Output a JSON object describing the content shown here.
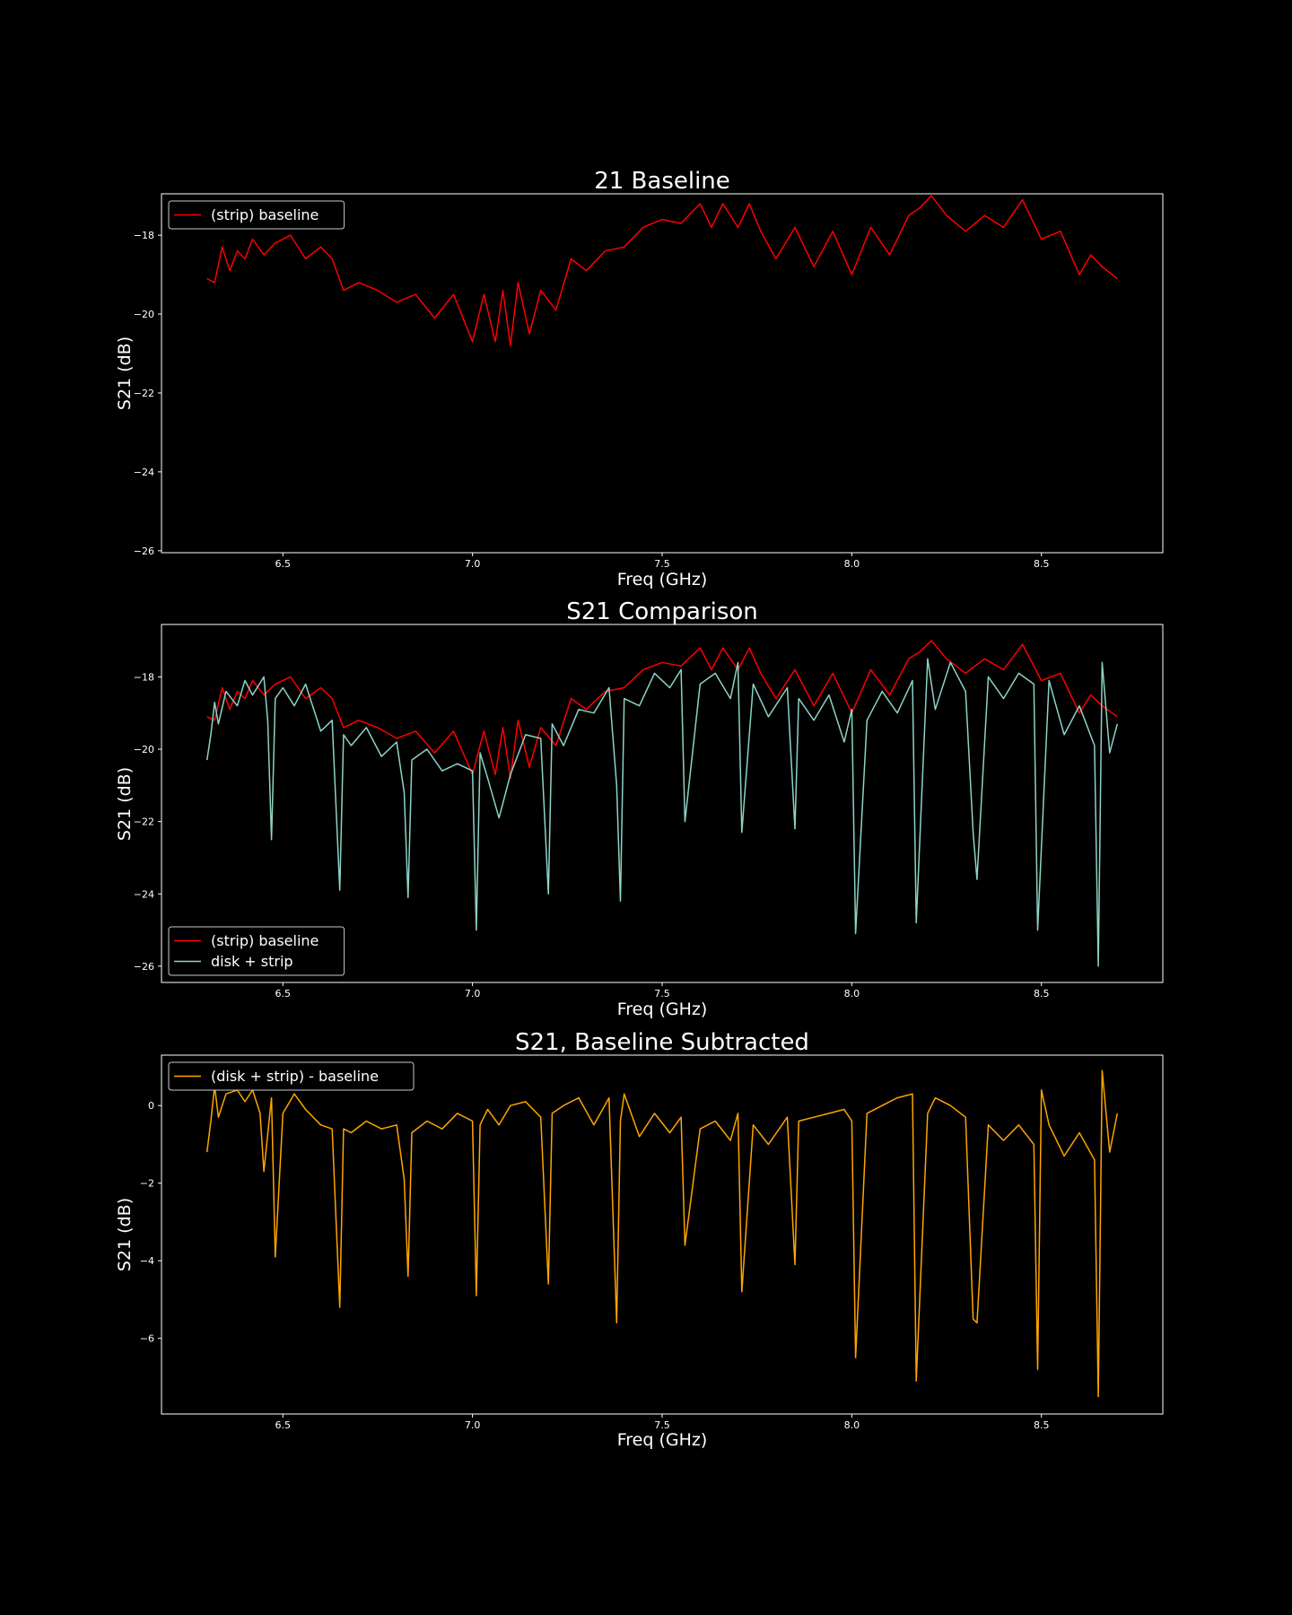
{
  "chart_data": [
    {
      "type": "line",
      "title": "21 Baseline",
      "xlabel": "Freq (GHz)",
      "ylabel": "S21 (dB)",
      "xlim": [
        6.18,
        8.82
      ],
      "ylim": [
        -26.05,
        -16.95
      ],
      "xticks": [
        6.5,
        7.0,
        7.5,
        8.0,
        8.5
      ],
      "xtick_labels": [
        "6.5",
        "7.0",
        "7.5",
        "8.0",
        "8.5"
      ],
      "yticks": [
        -18,
        -20,
        -22,
        -24,
        -26
      ],
      "ytick_labels": [
        "−18",
        "−20",
        "−22",
        "−24",
        "−26"
      ],
      "legend_position": "upper-left",
      "series": [
        {
          "name": "(strip) baseline",
          "color": "#ff0000",
          "x": [
            6.3,
            6.32,
            6.34,
            6.36,
            6.38,
            6.4,
            6.42,
            6.45,
            6.48,
            6.52,
            6.56,
            6.6,
            6.63,
            6.66,
            6.7,
            6.75,
            6.8,
            6.85,
            6.9,
            6.95,
            7.0,
            7.03,
            7.06,
            7.08,
            7.1,
            7.12,
            7.15,
            7.18,
            7.22,
            7.26,
            7.3,
            7.35,
            7.4,
            7.45,
            7.5,
            7.55,
            7.6,
            7.63,
            7.66,
            7.7,
            7.73,
            7.76,
            7.8,
            7.85,
            7.9,
            7.95,
            8.0,
            8.05,
            8.1,
            8.15,
            8.18,
            8.21,
            8.25,
            8.3,
            8.35,
            8.4,
            8.45,
            8.5,
            8.55,
            8.6,
            8.63,
            8.66,
            8.7
          ],
          "y": [
            -19.1,
            -19.2,
            -18.3,
            -18.9,
            -18.4,
            -18.6,
            -18.1,
            -18.5,
            -18.2,
            -18.0,
            -18.6,
            -18.3,
            -18.6,
            -19.4,
            -19.2,
            -19.4,
            -19.7,
            -19.5,
            -20.1,
            -19.5,
            -20.7,
            -19.5,
            -20.7,
            -19.4,
            -20.8,
            -19.2,
            -20.5,
            -19.4,
            -19.9,
            -18.6,
            -18.9,
            -18.4,
            -18.3,
            -17.8,
            -17.6,
            -17.7,
            -17.2,
            -17.8,
            -17.2,
            -17.8,
            -17.2,
            -17.9,
            -18.6,
            -17.8,
            -18.8,
            -17.9,
            -19.0,
            -17.8,
            -18.5,
            -17.5,
            -17.3,
            -17.0,
            -17.5,
            -17.9,
            -17.5,
            -17.8,
            -17.1,
            -18.1,
            -17.9,
            -19.0,
            -18.5,
            -18.8,
            -19.1
          ]
        }
      ]
    },
    {
      "type": "line",
      "title": "S21 Comparison",
      "xlabel": "Freq (GHz)",
      "ylabel": "S21 (dB)",
      "xlim": [
        6.18,
        8.82
      ],
      "ylim": [
        -26.45,
        -16.55
      ],
      "xticks": [
        6.5,
        7.0,
        7.5,
        8.0,
        8.5
      ],
      "xtick_labels": [
        "6.5",
        "7.0",
        "7.5",
        "8.0",
        "8.5"
      ],
      "yticks": [
        -18,
        -20,
        -22,
        -24,
        -26
      ],
      "ytick_labels": [
        "−18",
        "−20",
        "−22",
        "−24",
        "−26"
      ],
      "legend_position": "lower-left",
      "series": [
        {
          "name": "(strip) baseline",
          "color": "#ff0000",
          "x": [
            6.3,
            6.32,
            6.34,
            6.36,
            6.38,
            6.4,
            6.42,
            6.45,
            6.48,
            6.52,
            6.56,
            6.6,
            6.63,
            6.66,
            6.7,
            6.75,
            6.8,
            6.85,
            6.9,
            6.95,
            7.0,
            7.03,
            7.06,
            7.08,
            7.1,
            7.12,
            7.15,
            7.18,
            7.22,
            7.26,
            7.3,
            7.35,
            7.4,
            7.45,
            7.5,
            7.55,
            7.6,
            7.63,
            7.66,
            7.7,
            7.73,
            7.76,
            7.8,
            7.85,
            7.9,
            7.95,
            8.0,
            8.05,
            8.1,
            8.15,
            8.18,
            8.21,
            8.25,
            8.3,
            8.35,
            8.4,
            8.45,
            8.5,
            8.55,
            8.6,
            8.63,
            8.66,
            8.7
          ],
          "y": [
            -19.1,
            -19.2,
            -18.3,
            -18.9,
            -18.4,
            -18.6,
            -18.1,
            -18.5,
            -18.2,
            -18.0,
            -18.6,
            -18.3,
            -18.6,
            -19.4,
            -19.2,
            -19.4,
            -19.7,
            -19.5,
            -20.1,
            -19.5,
            -20.7,
            -19.5,
            -20.7,
            -19.4,
            -20.8,
            -19.2,
            -20.5,
            -19.4,
            -19.9,
            -18.6,
            -18.9,
            -18.4,
            -18.3,
            -17.8,
            -17.6,
            -17.7,
            -17.2,
            -17.8,
            -17.2,
            -17.8,
            -17.2,
            -17.9,
            -18.6,
            -17.8,
            -18.8,
            -17.9,
            -19.0,
            -17.8,
            -18.5,
            -17.5,
            -17.3,
            -17.0,
            -17.5,
            -17.9,
            -17.5,
            -17.8,
            -17.1,
            -18.1,
            -17.9,
            -19.0,
            -18.5,
            -18.8,
            -19.1
          ]
        },
        {
          "name": "disk + strip",
          "color": "#8dd3c7",
          "x": [
            6.3,
            6.31,
            6.32,
            6.33,
            6.35,
            6.38,
            6.4,
            6.42,
            6.45,
            6.46,
            6.47,
            6.48,
            6.5,
            6.53,
            6.56,
            6.6,
            6.63,
            6.65,
            6.66,
            6.68,
            6.72,
            6.76,
            6.8,
            6.82,
            6.83,
            6.84,
            6.88,
            6.92,
            6.96,
            7.0,
            7.01,
            7.02,
            7.04,
            7.07,
            7.1,
            7.14,
            7.18,
            7.2,
            7.21,
            7.24,
            7.28,
            7.32,
            7.36,
            7.38,
            7.39,
            7.4,
            7.44,
            7.48,
            7.52,
            7.55,
            7.56,
            7.6,
            7.64,
            7.68,
            7.7,
            7.71,
            7.74,
            7.78,
            7.83,
            7.85,
            7.86,
            7.9,
            7.94,
            7.98,
            8.0,
            8.01,
            8.04,
            8.08,
            8.12,
            8.16,
            8.17,
            8.2,
            8.22,
            8.26,
            8.3,
            8.32,
            8.33,
            8.36,
            8.4,
            8.44,
            8.48,
            8.49,
            8.52,
            8.56,
            8.6,
            8.64,
            8.65,
            8.66,
            8.68,
            8.7
          ],
          "y": [
            -20.3,
            -19.6,
            -18.7,
            -19.3,
            -18.4,
            -18.8,
            -18.1,
            -18.5,
            -18.0,
            -19.2,
            -22.5,
            -18.6,
            -18.3,
            -18.8,
            -18.2,
            -19.5,
            -19.2,
            -23.9,
            -19.6,
            -19.9,
            -19.4,
            -20.2,
            -19.8,
            -21.2,
            -24.1,
            -20.3,
            -20.0,
            -20.6,
            -20.4,
            -20.6,
            -25.0,
            -20.1,
            -20.8,
            -21.9,
            -20.7,
            -19.6,
            -19.7,
            -24.0,
            -19.3,
            -19.9,
            -18.9,
            -19.0,
            -18.3,
            -21.0,
            -24.2,
            -18.6,
            -18.8,
            -17.9,
            -18.3,
            -17.8,
            -22.0,
            -18.2,
            -17.9,
            -18.6,
            -17.6,
            -22.3,
            -18.2,
            -19.1,
            -18.3,
            -22.2,
            -18.6,
            -19.2,
            -18.5,
            -19.8,
            -18.9,
            -25.1,
            -19.2,
            -18.4,
            -19.0,
            -18.1,
            -24.8,
            -17.5,
            -18.9,
            -17.6,
            -18.4,
            -22.3,
            -23.6,
            -18.0,
            -18.6,
            -17.9,
            -18.2,
            -25.0,
            -18.1,
            -19.6,
            -18.8,
            -19.9,
            -26.0,
            -17.6,
            -20.1,
            -19.3
          ]
        }
      ]
    },
    {
      "type": "line",
      "title": "S21, Baseline Subtracted",
      "xlabel": "Freq (GHz)",
      "ylabel": "S21 (dB)",
      "xlim": [
        6.18,
        8.82
      ],
      "ylim": [
        -7.95,
        1.3
      ],
      "xticks": [
        6.5,
        7.0,
        7.5,
        8.0,
        8.5
      ],
      "xtick_labels": [
        "6.5",
        "7.0",
        "7.5",
        "8.0",
        "8.5"
      ],
      "yticks": [
        0,
        -2,
        -4,
        -6
      ],
      "ytick_labels": [
        "0",
        "−2",
        "−4",
        "−6"
      ],
      "legend_position": "upper-left",
      "series": [
        {
          "name": "(disk + strip) - baseline",
          "color": "#ffa500",
          "x": [
            6.3,
            6.31,
            6.32,
            6.33,
            6.35,
            6.38,
            6.4,
            6.42,
            6.44,
            6.45,
            6.47,
            6.48,
            6.5,
            6.53,
            6.56,
            6.6,
            6.63,
            6.65,
            6.66,
            6.68,
            6.72,
            6.76,
            6.8,
            6.82,
            6.83,
            6.84,
            6.88,
            6.92,
            6.96,
            7.0,
            7.01,
            7.02,
            7.04,
            7.07,
            7.1,
            7.14,
            7.18,
            7.2,
            7.21,
            7.24,
            7.28,
            7.32,
            7.36,
            7.38,
            7.39,
            7.4,
            7.44,
            7.48,
            7.52,
            7.55,
            7.56,
            7.6,
            7.64,
            7.68,
            7.7,
            7.71,
            7.74,
            7.78,
            7.83,
            7.85,
            7.86,
            7.9,
            7.94,
            7.98,
            8.0,
            8.01,
            8.04,
            8.08,
            8.12,
            8.16,
            8.17,
            8.2,
            8.22,
            8.26,
            8.3,
            8.32,
            8.33,
            8.36,
            8.4,
            8.44,
            8.48,
            8.49,
            8.5,
            8.52,
            8.56,
            8.6,
            8.64,
            8.65,
            8.66,
            8.68,
            8.7
          ],
          "y": [
            -1.2,
            -0.4,
            0.5,
            -0.3,
            0.3,
            0.4,
            0.1,
            0.4,
            -0.2,
            -1.7,
            0.2,
            -3.9,
            -0.2,
            0.3,
            -0.1,
            -0.5,
            -0.6,
            -5.2,
            -0.6,
            -0.7,
            -0.4,
            -0.6,
            -0.5,
            -1.9,
            -4.4,
            -0.7,
            -0.4,
            -0.6,
            -0.2,
            -0.4,
            -4.9,
            -0.5,
            -0.1,
            -0.5,
            0.0,
            0.1,
            -0.3,
            -4.6,
            -0.2,
            0.0,
            0.2,
            -0.5,
            0.2,
            -5.6,
            -0.4,
            0.3,
            -0.8,
            -0.2,
            -0.7,
            -0.3,
            -3.6,
            -0.6,
            -0.4,
            -0.9,
            -0.2,
            -4.8,
            -0.5,
            -1.0,
            -0.3,
            -4.1,
            -0.4,
            -0.3,
            -0.2,
            -0.1,
            -0.4,
            -6.5,
            -0.2,
            0.0,
            0.2,
            0.3,
            -7.1,
            -0.2,
            0.2,
            0.0,
            -0.3,
            -5.5,
            -5.6,
            -0.5,
            -0.9,
            -0.5,
            -1.0,
            -6.8,
            0.4,
            -0.5,
            -1.3,
            -0.7,
            -1.4,
            -7.5,
            0.9,
            -1.2,
            -0.2
          ]
        }
      ]
    }
  ]
}
